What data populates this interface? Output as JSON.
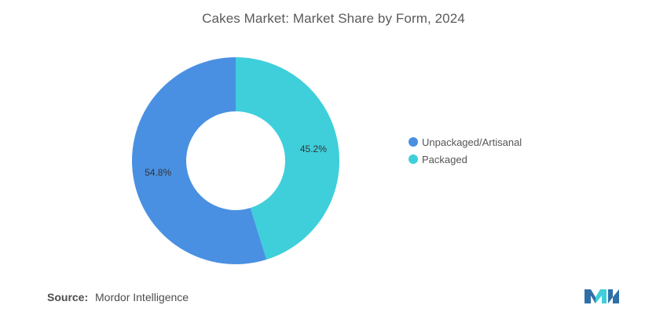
{
  "chart_data": {
    "type": "pie",
    "title": "Cakes Market: Market Share by Form, 2024",
    "series": [
      {
        "name": "Unpackaged/Artisanal",
        "value": 54.8,
        "label": "54.8%",
        "color": "#4a90e2"
      },
      {
        "name": "Packaged",
        "value": 45.2,
        "label": "45.2%",
        "color": "#3ecfdb"
      }
    ],
    "donut": true,
    "legend_position": "right"
  },
  "source": {
    "label": "Source:",
    "text": "Mordor Intelligence"
  },
  "logo": {
    "colors": [
      "#2f6fa8",
      "#3ecfdb"
    ]
  }
}
